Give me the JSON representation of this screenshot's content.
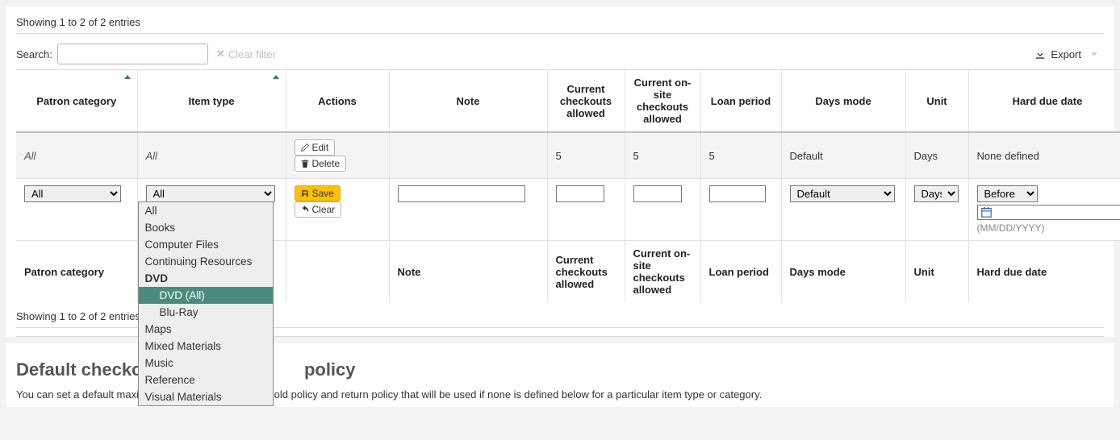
{
  "entries_top": "Showing 1 to 2 of 2 entries",
  "entries_bottom": "Showing 1 to 2 of 2 entries",
  "search_label": "Search:",
  "clear_filter_label": "Clear filter",
  "export_label": "Export",
  "columns": {
    "patron_category": "Patron category",
    "item_type": "Item type",
    "actions": "Actions",
    "note": "Note",
    "current_checkouts": "Current checkouts allowed",
    "current_onsite": "Current on-site checkouts allowed",
    "loan_period": "Loan period",
    "days_mode": "Days mode",
    "unit": "Unit",
    "hard_due_date": "Hard due date"
  },
  "data_row": {
    "patron_category": "All",
    "item_type": "All",
    "current_checkouts": "5",
    "current_onsite": "5",
    "loan_period": "5",
    "days_mode": "Default",
    "unit": "Days",
    "hard_due_date": "None defined"
  },
  "row_actions": {
    "edit": "Edit",
    "delete": "Delete",
    "save": "Save",
    "clear": "Clear"
  },
  "edit_row": {
    "patron_category_value": "All",
    "item_type_value": "All",
    "days_mode_value": "Default",
    "unit_value": "Days",
    "hard_due_mode": "Before",
    "hard_due_format": "(MM/DD/YYYY)"
  },
  "dropdown": {
    "items": [
      {
        "label": "All"
      },
      {
        "label": "Books"
      },
      {
        "label": "Computer Files"
      },
      {
        "label": "Continuing Resources"
      },
      {
        "label": "DVD",
        "bold": true
      },
      {
        "label": "DVD (All)",
        "indent": true,
        "selected": true
      },
      {
        "label": "Blu-Ray",
        "indent": true
      },
      {
        "label": "Maps"
      },
      {
        "label": "Mixed Materials"
      },
      {
        "label": "Music"
      },
      {
        "label": "Reference"
      },
      {
        "label": "Visual Materials"
      }
    ],
    "colors": {
      "bg": "#eeeeee",
      "selected_bg": "#4a8b7d",
      "selected_text": "#ffffff"
    }
  },
  "section2": {
    "title_visible_left": "Default checkout",
    "title_visible_right": "policy",
    "description_left": "You can set a default maxi",
    "description_right": "old policy and return policy that will be used if none is defined below for a particular item type or category."
  },
  "colors": {
    "page_bg": "#f3f3f3",
    "panel_bg": "#ffffff",
    "row_shade": "#f4f4f4",
    "save_btn_bg": "#ffc107",
    "sort_indicator": "#2e8b3d",
    "muted_text": "#c0c0c0"
  }
}
